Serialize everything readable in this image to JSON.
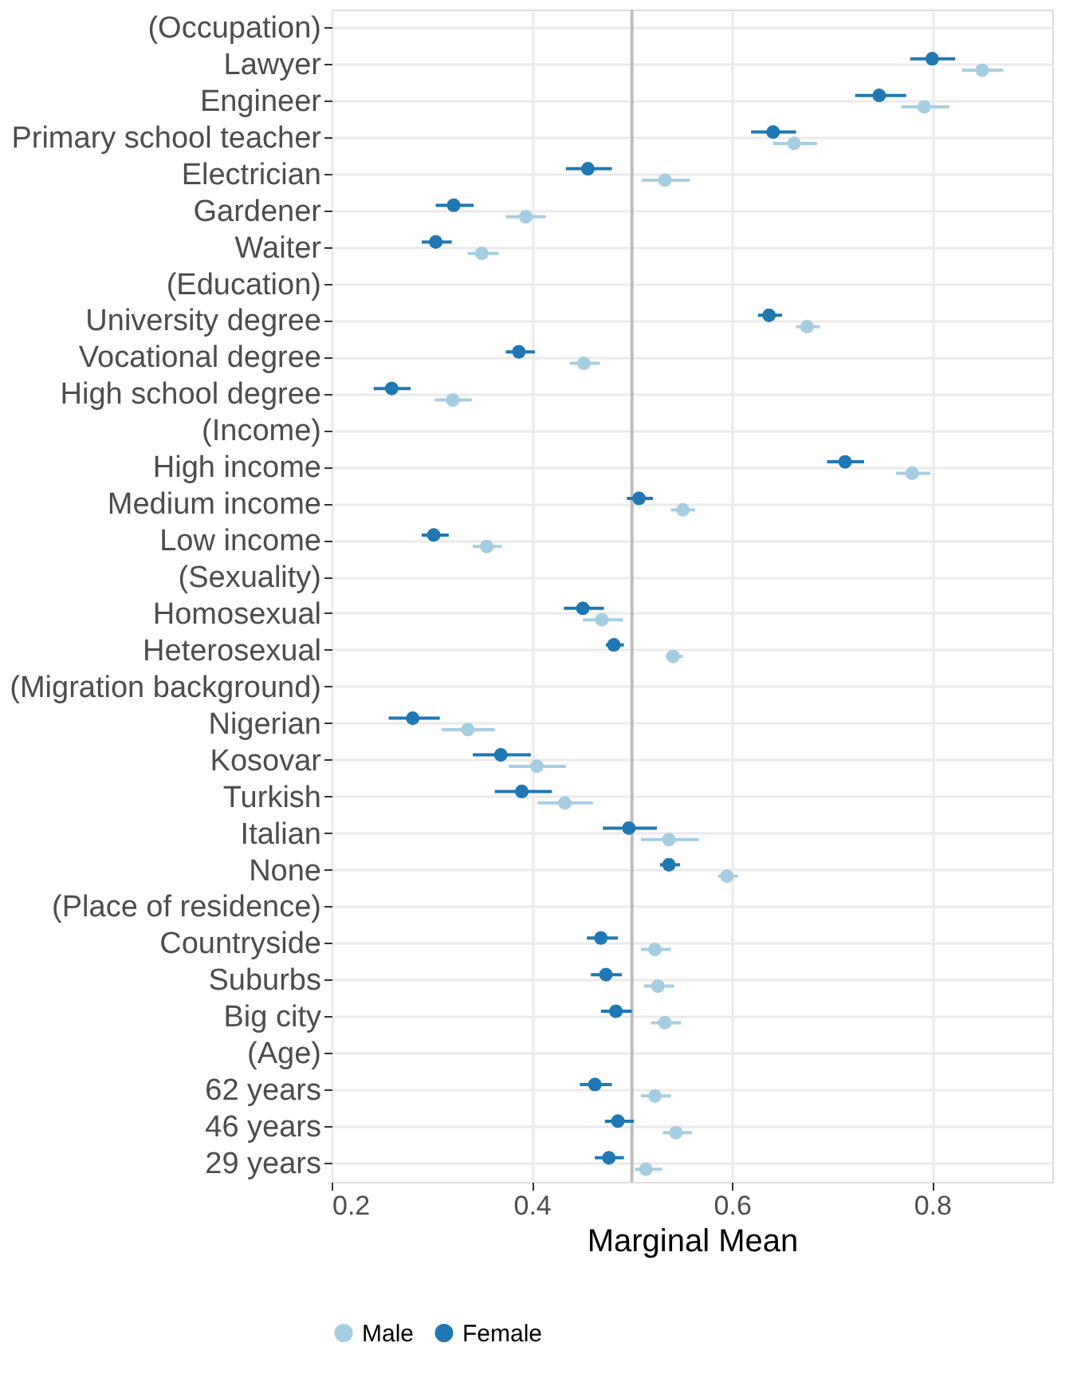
{
  "chart_data": {
    "type": "scatter",
    "orientation": "horizontal",
    "xlabel": "Marginal Mean",
    "categories": [
      "(Occupation)",
      "Lawyer",
      "Engineer",
      "Primary school teacher",
      "Electrician",
      "Gardener",
      "Waiter",
      "(Education)",
      "University degree",
      "Vocational degree",
      "High school degree",
      "(Income)",
      "High income",
      "Medium income",
      "Low income",
      "(Sexuality)",
      "Homosexual",
      "Heterosexual",
      "(Migration background)",
      "Nigerian",
      "Kosovar",
      "Turkish",
      "Italian",
      "None",
      "(Place of residence)",
      "Countryside",
      "Suburbs",
      "Big city",
      "(Age)",
      "62 years",
      "46 years",
      "29 years"
    ],
    "series": [
      {
        "name": "Male",
        "color": "#a6cee3",
        "values": [
          null,
          0.85,
          0.792,
          0.662,
          0.533,
          0.394,
          0.35,
          null,
          0.675,
          0.452,
          0.321,
          null,
          0.78,
          0.551,
          0.355,
          null,
          0.47,
          0.541,
          null,
          0.336,
          0.405,
          0.433,
          0.537,
          0.595,
          null,
          0.523,
          0.526,
          0.533,
          null,
          0.523,
          0.544,
          0.514
        ],
        "errors": [
          null,
          [
            0.83,
            0.871
          ],
          [
            0.769,
            0.817
          ],
          [
            0.641,
            0.685
          ],
          [
            0.51,
            0.558
          ],
          [
            0.374,
            0.414
          ],
          [
            0.336,
            0.367
          ],
          null,
          [
            0.664,
            0.688
          ],
          [
            0.438,
            0.468
          ],
          [
            0.303,
            0.34
          ],
          null,
          [
            0.764,
            0.798
          ],
          [
            0.539,
            0.563
          ],
          [
            0.341,
            0.37
          ],
          null,
          [
            0.451,
            0.491
          ],
          [
            0.534,
            0.551
          ],
          null,
          [
            0.31,
            0.363
          ],
          [
            0.377,
            0.434
          ],
          [
            0.406,
            0.461
          ],
          [
            0.509,
            0.567
          ],
          [
            0.586,
            0.606
          ],
          null,
          [
            0.509,
            0.539
          ],
          [
            0.512,
            0.542
          ],
          [
            0.519,
            0.549
          ],
          null,
          [
            0.509,
            0.539
          ],
          [
            0.531,
            0.56
          ],
          [
            0.503,
            0.53
          ]
        ]
      },
      {
        "name": "Female",
        "color": "#1f78b4",
        "values": [
          null,
          0.8,
          0.747,
          0.641,
          0.456,
          0.322,
          0.304,
          null,
          0.637,
          0.387,
          0.26,
          null,
          0.713,
          0.507,
          0.302,
          null,
          0.451,
          0.482,
          null,
          0.281,
          0.369,
          0.39,
          0.497,
          0.537,
          null,
          0.469,
          0.474,
          0.484,
          null,
          0.463,
          0.486,
          0.477
        ],
        "errors": [
          null,
          [
            0.778,
            0.823
          ],
          [
            0.723,
            0.774
          ],
          [
            0.619,
            0.664
          ],
          [
            0.434,
            0.48
          ],
          [
            0.304,
            0.342
          ],
          [
            0.29,
            0.32
          ],
          null,
          [
            0.626,
            0.65
          ],
          [
            0.374,
            0.403
          ],
          [
            0.242,
            0.279
          ],
          null,
          [
            0.695,
            0.732
          ],
          [
            0.495,
            0.521
          ],
          [
            0.29,
            0.317
          ],
          null,
          [
            0.432,
            0.472
          ],
          [
            0.474,
            0.492
          ],
          null,
          [
            0.257,
            0.308
          ],
          [
            0.341,
            0.399
          ],
          [
            0.363,
            0.42
          ],
          [
            0.471,
            0.525
          ],
          [
            0.528,
            0.548
          ],
          null,
          [
            0.455,
            0.486
          ],
          [
            0.459,
            0.49
          ],
          [
            0.469,
            0.5
          ],
          null,
          [
            0.448,
            0.48
          ],
          [
            0.473,
            0.502
          ],
          [
            0.463,
            0.492
          ]
        ]
      }
    ],
    "xlim": [
      0.2,
      0.92
    ],
    "xticks": [
      0.2,
      0.4,
      0.6,
      0.8
    ],
    "ref_lines": [
      {
        "axis": "x",
        "value": 0.5,
        "color": "#bebebe"
      }
    ],
    "grid": true,
    "legend": "bottom",
    "marker": "circle"
  }
}
